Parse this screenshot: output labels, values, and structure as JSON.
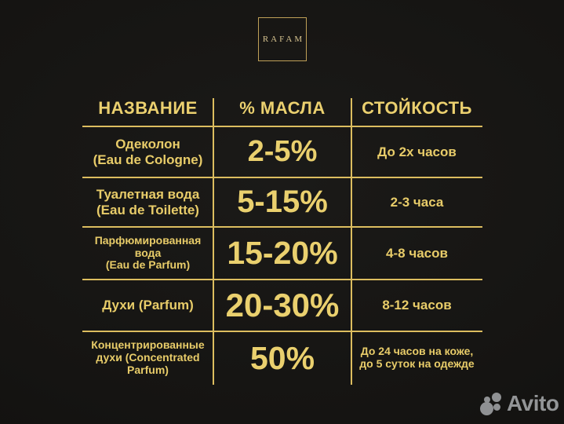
{
  "brand": {
    "logo_text": "RAFAM"
  },
  "table": {
    "headers": [
      "НАЗВАНИЕ",
      "% МАСЛА",
      "СТОЙКОСТЬ"
    ],
    "rows": [
      {
        "name": [
          "Одеколон",
          "(Eau de Cologne)"
        ],
        "oil": "2-5%",
        "life": [
          "До 2х часов"
        ]
      },
      {
        "name": [
          "Туалетная вода",
          "(Eau de Toilette)"
        ],
        "oil": "5-15%",
        "life": [
          "2-3 часа"
        ]
      },
      {
        "name": [
          "Парфюмированная вода",
          "(Eau de Parfum)"
        ],
        "oil": "15-20%",
        "life": [
          "4-8 часов"
        ]
      },
      {
        "name": [
          "Духи (Parfum)"
        ],
        "oil": "20-30%",
        "life": [
          "8-12 часов"
        ]
      },
      {
        "name": [
          "Концентрированные",
          "духи (Concentrated",
          "Parfum)"
        ],
        "oil": "50%",
        "life": [
          "До 24 часов на коже,",
          "до 5 суток на одежде"
        ]
      }
    ]
  },
  "watermark": {
    "text": "Avito"
  },
  "colors": {
    "background": "#151412",
    "gold_text": "#e8cc69",
    "gold_line": "#dcbd5f",
    "logo_border": "#bfa057",
    "watermark_grey": "#939597"
  },
  "chart_data": {
    "type": "table",
    "title": "",
    "columns": [
      "НАЗВАНИЕ",
      "% МАСЛА",
      "СТОЙКОСТЬ"
    ],
    "rows": [
      [
        "Одеколон (Eau de Cologne)",
        "2-5%",
        "До 2х часов"
      ],
      [
        "Туалетная вода (Eau de Toilette)",
        "5-15%",
        "2-3 часа"
      ],
      [
        "Парфюмированная вода (Eau de Parfum)",
        "15-20%",
        "4-8 часов"
      ],
      [
        "Духи (Parfum)",
        "20-30%",
        "8-12 часов"
      ],
      [
        "Концентрированные духи (Concentrated Parfum)",
        "50%",
        "До 24 часов на коже, до 5 суток на одежде"
      ]
    ],
    "oil_percent_ranges": [
      [
        2,
        5
      ],
      [
        5,
        15
      ],
      [
        15,
        20
      ],
      [
        20,
        30
      ],
      [
        50,
        50
      ]
    ],
    "legend_position": "none",
    "grid": "gold dividers, no outer border"
  }
}
